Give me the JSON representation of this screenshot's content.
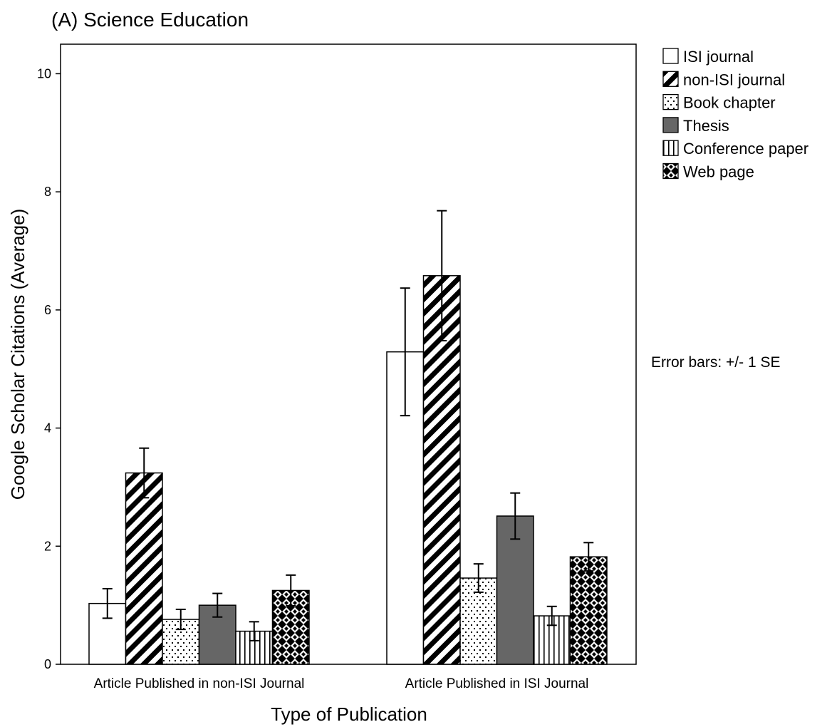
{
  "chart_data": {
    "type": "bar",
    "title": "(A) Science Education",
    "xlabel": "Type of Publication",
    "ylabel": "Google Scholar Citations (Average)",
    "ylim": [
      0,
      10.5
    ],
    "yticks": [
      0,
      2,
      4,
      6,
      8,
      10
    ],
    "categories": [
      "Article Published in non-ISI Journal",
      "Article Published in ISI Journal"
    ],
    "series": [
      {
        "name": "ISI journal",
        "pattern": "empty",
        "values": [
          1.03,
          5.29
        ],
        "error": [
          0.25,
          1.08
        ]
      },
      {
        "name": "non-ISI journal",
        "pattern": "diagonal",
        "values": [
          3.24,
          6.58
        ],
        "error": [
          0.42,
          1.1
        ]
      },
      {
        "name": "Book chapter",
        "pattern": "dots",
        "values": [
          0.76,
          1.46
        ],
        "error": [
          0.17,
          0.24
        ]
      },
      {
        "name": "Thesis",
        "pattern": "solid-gray",
        "values": [
          1.0,
          2.51
        ],
        "error": [
          0.2,
          0.39
        ]
      },
      {
        "name": "Conference paper",
        "pattern": "vertical",
        "values": [
          0.56,
          0.82
        ],
        "error": [
          0.16,
          0.16
        ]
      },
      {
        "name": "Web page",
        "pattern": "crosshatch",
        "values": [
          1.25,
          1.82
        ],
        "error": [
          0.26,
          0.24
        ]
      }
    ],
    "grid": false,
    "legend_position": "top-right",
    "note": "Error bars: +/- 1 SE"
  },
  "colors": {
    "axis": "#000000",
    "thesis_fill": "#666666",
    "pattern_ink": "#000000"
  }
}
